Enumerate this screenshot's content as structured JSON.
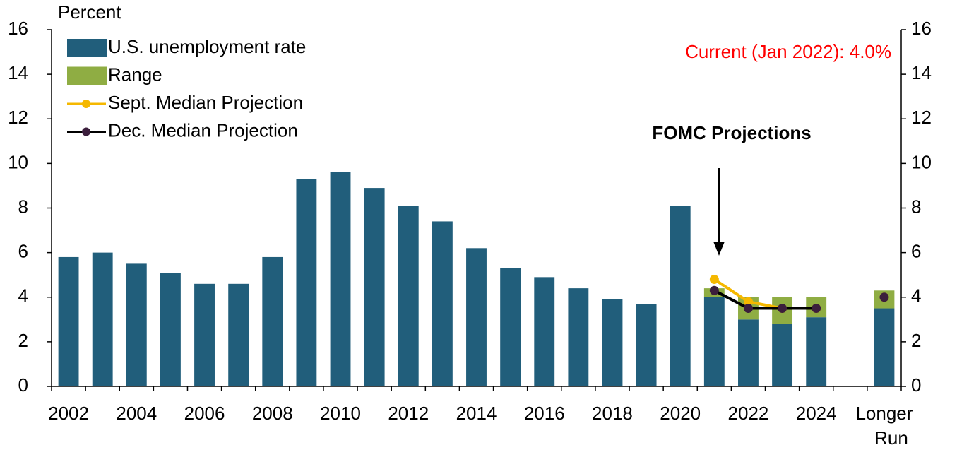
{
  "chart_data": {
    "type": "bar",
    "y_label": "Percent",
    "annotations": [
      "Current (Jan 2022): 4.0%",
      "FOMC Projections"
    ],
    "categories": [
      "2002",
      null,
      "2004",
      null,
      "2006",
      null,
      "2008",
      null,
      "2010",
      null,
      "2012",
      null,
      "2014",
      null,
      "2016",
      null,
      "2018",
      null,
      "2020",
      null,
      "2022",
      null,
      "2024",
      null,
      "Longer Run"
    ],
    "series": [
      {
        "name": "U.S. unemployment rate",
        "kind": "bar",
        "color": "#215e7b",
        "values": [
          5.8,
          6.0,
          5.5,
          5.1,
          4.6,
          4.6,
          5.8,
          9.3,
          9.6,
          8.9,
          8.1,
          7.4,
          6.2,
          5.3,
          4.9,
          4.4,
          3.9,
          3.7,
          8.1,
          4.0,
          3.0,
          2.8,
          3.1,
          null,
          3.5
        ]
      },
      {
        "name": "Range",
        "kind": "stacked",
        "color": "#8fad43",
        "values": [
          null,
          null,
          null,
          null,
          null,
          null,
          null,
          null,
          null,
          null,
          null,
          null,
          null,
          null,
          null,
          null,
          null,
          null,
          null,
          0.4,
          1.0,
          1.2,
          0.9,
          null,
          0.8
        ]
      },
      {
        "name": "Sept. Median Projection",
        "kind": "line",
        "color": "#f5b800",
        "marker_color": "#f5b800",
        "values": [
          null,
          null,
          null,
          null,
          null,
          null,
          null,
          null,
          null,
          null,
          null,
          null,
          null,
          null,
          null,
          null,
          null,
          null,
          null,
          4.8,
          3.8,
          3.5,
          3.5,
          null,
          4.0
        ]
      },
      {
        "name": "Dec. Median Projection",
        "kind": "line",
        "color": "#000000",
        "marker_color": "#3b1e3c",
        "values": [
          null,
          null,
          null,
          null,
          null,
          null,
          null,
          null,
          null,
          null,
          null,
          null,
          null,
          null,
          null,
          null,
          null,
          null,
          null,
          4.3,
          3.5,
          3.5,
          3.5,
          null,
          4.0
        ]
      }
    ],
    "ylim": [
      0,
      16
    ],
    "yticks": [
      0,
      2,
      4,
      6,
      8,
      10,
      12,
      14,
      16
    ],
    "y2lim": [
      0,
      16
    ],
    "y2ticks": [
      0,
      2,
      4,
      6,
      8,
      10,
      12,
      14,
      16
    ],
    "grid": false
  }
}
